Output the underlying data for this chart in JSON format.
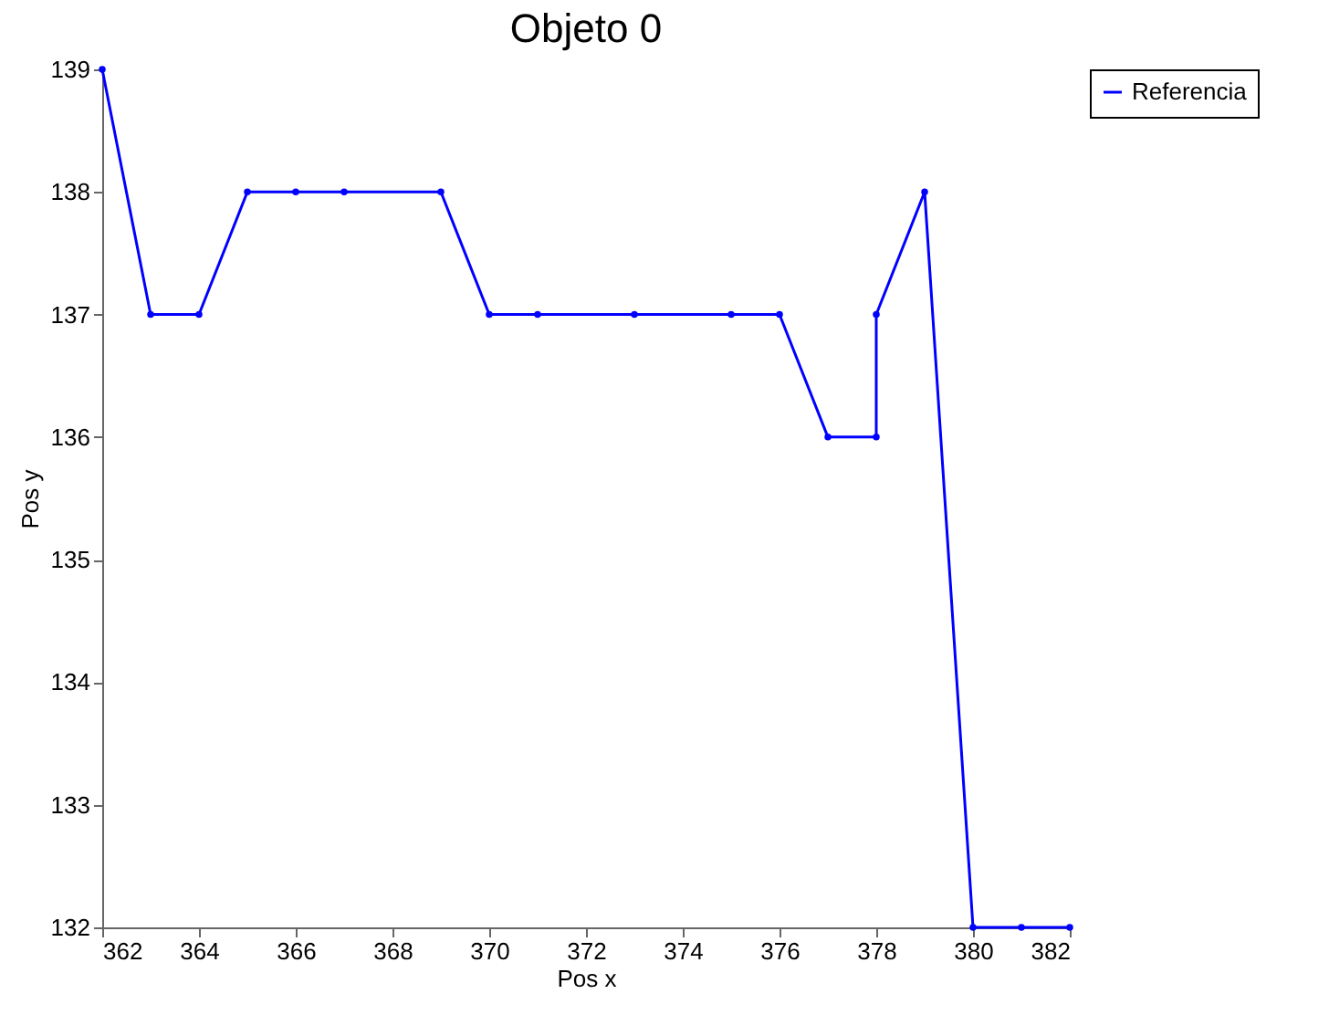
{
  "chart_data": {
    "type": "line",
    "title": "Objeto 0",
    "xlabel": "Pos x",
    "ylabel": "Pos y",
    "series": [
      {
        "name": "Referencia",
        "color": "#0000ff",
        "x": [
          362,
          363,
          364,
          365,
          366,
          367,
          369,
          370,
          371,
          373,
          375,
          376,
          377,
          378,
          378,
          379,
          380,
          381,
          382
        ],
        "values": [
          139,
          137,
          137,
          138,
          138,
          138,
          138,
          137,
          137,
          137,
          137,
          137,
          136,
          136,
          137,
          138,
          132,
          132,
          132
        ]
      }
    ],
    "xlim": [
      362,
      382
    ],
    "xticks": [
      362,
      364,
      366,
      368,
      370,
      372,
      374,
      376,
      378,
      380,
      382
    ],
    "ylim": [
      132,
      139
    ],
    "yticks": [
      132,
      133,
      134,
      135,
      136,
      137,
      138,
      139
    ],
    "grid": false,
    "legend": "top right",
    "marker": "circle",
    "line_style": "solid"
  }
}
